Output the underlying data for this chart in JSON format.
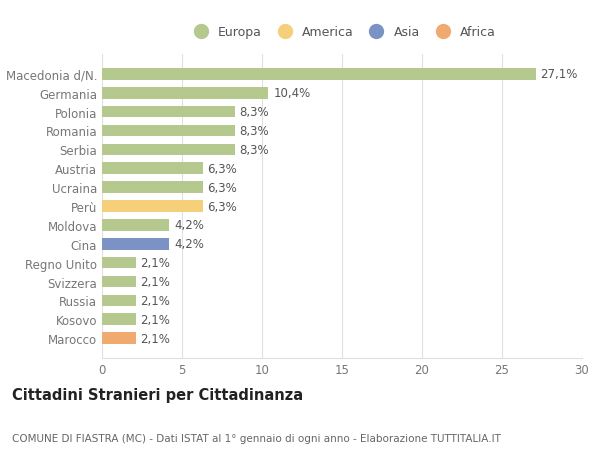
{
  "categories": [
    "Macedonia d/N.",
    "Germania",
    "Polonia",
    "Romania",
    "Serbia",
    "Austria",
    "Ucraina",
    "Perù",
    "Moldova",
    "Cina",
    "Regno Unito",
    "Svizzera",
    "Russia",
    "Kosovo",
    "Marocco"
  ],
  "values": [
    27.1,
    10.4,
    8.3,
    8.3,
    8.3,
    6.3,
    6.3,
    6.3,
    4.2,
    4.2,
    2.1,
    2.1,
    2.1,
    2.1,
    2.1
  ],
  "labels": [
    "27,1%",
    "10,4%",
    "8,3%",
    "8,3%",
    "8,3%",
    "6,3%",
    "6,3%",
    "6,3%",
    "4,2%",
    "4,2%",
    "2,1%",
    "2,1%",
    "2,1%",
    "2,1%",
    "2,1%"
  ],
  "colors": [
    "#b5c98e",
    "#b5c98e",
    "#b5c98e",
    "#b5c98e",
    "#b5c98e",
    "#b5c98e",
    "#b5c98e",
    "#f5cf7a",
    "#b5c98e",
    "#7b93c4",
    "#b5c98e",
    "#b5c98e",
    "#b5c98e",
    "#b5c98e",
    "#f0a96e"
  ],
  "continent_colors": {
    "Europa": "#b5c98e",
    "America": "#f5cf7a",
    "Asia": "#7b93c4",
    "Africa": "#f0a96e"
  },
  "legend_labels": [
    "Europa",
    "America",
    "Asia",
    "Africa"
  ],
  "title": "Cittadini Stranieri per Cittadinanza",
  "subtitle": "COMUNE DI FIASTRA (MC) - Dati ISTAT al 1° gennaio di ogni anno - Elaborazione TUTTITALIA.IT",
  "xlim": [
    0,
    30
  ],
  "xticks": [
    0,
    5,
    10,
    15,
    20,
    25,
    30
  ],
  "bg_color": "#ffffff",
  "grid_color": "#e0e0e0",
  "bar_height": 0.62,
  "label_fontsize": 8.5,
  "title_fontsize": 10.5,
  "subtitle_fontsize": 7.5,
  "tick_fontsize": 8.5
}
